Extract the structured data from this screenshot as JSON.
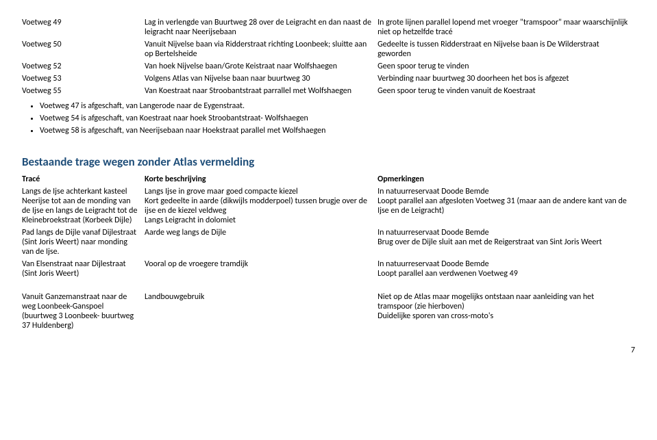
{
  "table1": {
    "rows": [
      {
        "c0": "Voetweg 49",
        "c1": "Lag in verlengde van Buurtweg 28 over de Leigracht en dan naast de leigracht naar Neerijsebaan",
        "c2": "In grote lijnen parallel lopend met vroeger \"tramspoor\" maar waarschijnlijk niet op hetzelfde tracé"
      },
      {
        "c0": "Voetweg 50",
        "c1": "Vanuit Nijvelse baan via Ridderstraat richting Loonbeek; sluitte aan op Bertelsheide",
        "c2": "Gedeelte is tussen Ridderstraat en Nijvelse baan is De Wilderstraat geworden"
      },
      {
        "c0": "Voetweg 52",
        "c1": "Van hoek Nijvelse baan/Grote Keistraat naar Wolfshaegen",
        "c2": "Geen spoor  terug te vinden"
      },
      {
        "c0": "Voetweg 53",
        "c1": "Volgens Atlas van Nijvelse baan naar buurtweg 30",
        "c2": "Verbinding naar buurtweg 30 doorheen het bos is afgezet"
      },
      {
        "c0": "Voetweg 55",
        "c1": "Van Koestraat naar Stroobantstraat parrallel met Wolfshaegen",
        "c2": "Geen spoor  terug te vinden vanuit de Koestraat"
      }
    ]
  },
  "bullets": [
    "Voetweg 47 is afgeschaft, van Langerode naar de Eygenstraat.",
    "Voetweg 54 is afgeschaft, van Koestraat naar hoek Stroobantstraat- Wolfshaegen",
    "Voetweg 58 is afgeschaft, van Neerijsebaan naar Hoekstraat parallel met Wolfshaegen"
  ],
  "section2": {
    "title": "Bestaande trage wegen zonder Atlas vermelding",
    "header": {
      "c0": "Tracé",
      "c1": "Korte beschrijving",
      "c2": "Opmerkingen"
    },
    "rows": [
      {
        "c0": "Langs de Ijse achterkant kasteel Neerijse tot aan de monding van de Ijse en langs de Leigracht tot de Kleinebroekstraat (Korbeek Dijle)",
        "c1": "Langs Ijse in grove maar goed compacte kiezel\nKort gedeelte in aarde (dikwijls modderpoel) tussen brugje over de ijse en de kiezel veldweg\nLangs Leigracht in dolomiet",
        "c2": "In natuurreservaat Doode Bemde\nLoopt parallel aan afgesloten Voetweg 31 (maar aan de andere kant van de Ijse en de Leigracht)"
      },
      {
        "c0": "Pad langs de Dijle vanaf Dijlestraat (Sint Joris Weert) naar monding van de Ijse.",
        "c1": "Aarde weg langs de Dijle",
        "c2": "In natuurreservaat Doode Bemde\nBrug over de Dijle sluit aan met de Reigerstraat van Sint Joris Weert"
      },
      {
        "c0": "Van Elsenstraat naar Dijlestraat (Sint Joris Weert)",
        "c1": "Vooral op de vroegere tramdijk",
        "c2": "In natuurreservaat Doode Bemde\nLoopt parallel aan verdwenen Voetweg 49"
      },
      {
        "c0": "Vanuit Ganzemanstraat naar de weg Loonbeek-Ganspoel (buurtweg 3 Loonbeek- buurtweg 37 Huldenberg)",
        "c1": "Landbouwgebruik",
        "c2": "Niet op de Atlas maar mogelijks ontstaan naar aanleiding van het tramspoor (zie hierboven)\nDuidelijke sporen van cross-moto's"
      }
    ]
  },
  "pageNumber": "7"
}
